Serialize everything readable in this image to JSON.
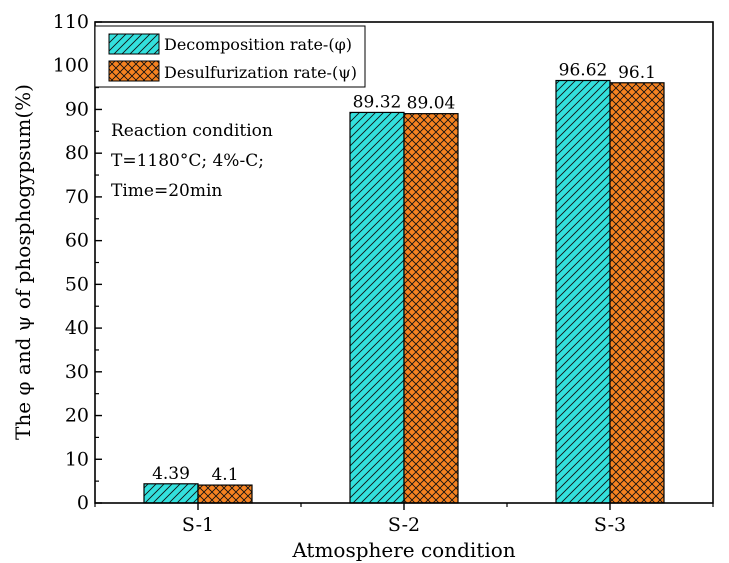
{
  "chart_data": {
    "type": "bar",
    "categories": [
      "S-1",
      "S-2",
      "S-3"
    ],
    "series": [
      {
        "name": "Decomposition rate-(φ)",
        "values": [
          4.39,
          89.32,
          96.62
        ],
        "labels": [
          "4.39",
          "89.32",
          "96.62"
        ],
        "color": "#33e0dd",
        "pattern": "diagonal-hatch"
      },
      {
        "name": "Desulfurization rate-(ψ)",
        "values": [
          4.1,
          89.04,
          96.1
        ],
        "labels": [
          "4.1",
          "89.04",
          "96.1"
        ],
        "color": "#f58220",
        "pattern": "cross-hatch"
      }
    ],
    "xlabel": "Atmosphere condition",
    "ylabel": "The φ and ψ of phosphogypsum(%)",
    "ylim": [
      0,
      110
    ],
    "yticks": [
      0,
      10,
      20,
      30,
      40,
      50,
      60,
      70,
      80,
      90,
      100,
      110
    ],
    "grid": false,
    "legend_position": "top-left",
    "annotation": [
      "Reaction condition",
      "T=1180°C; 4%-C;",
      "Time=20min"
    ]
  }
}
